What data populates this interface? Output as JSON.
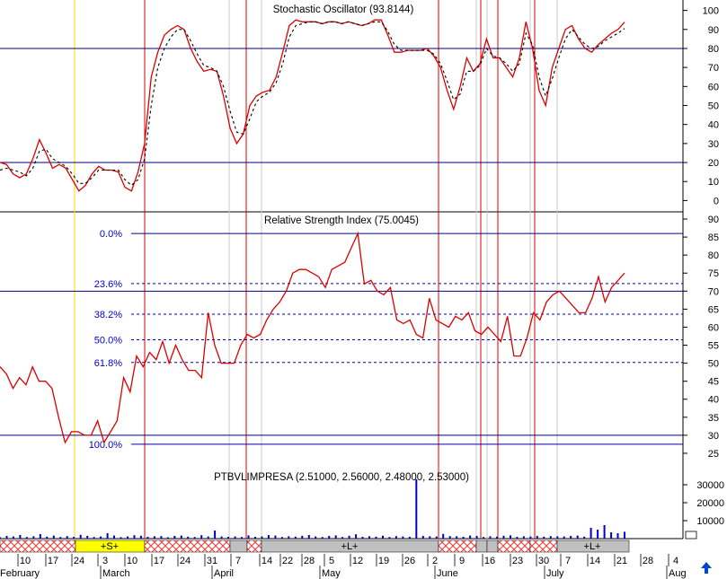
{
  "chart_data": [
    {
      "type": "line",
      "title": "Stochastic Oscillator (93.8144)",
      "ylim": [
        -5,
        105
      ],
      "yticks": [
        0,
        10,
        20,
        30,
        40,
        50,
        60,
        70,
        80,
        90,
        100
      ],
      "reference_lines": [
        80,
        20
      ],
      "series": [
        {
          "values": [
            20,
            19,
            14,
            12,
            14,
            22,
            32,
            25,
            17,
            19,
            17,
            11,
            5,
            8,
            14,
            18,
            16,
            16,
            15,
            7,
            5,
            15,
            30,
            65,
            78,
            87,
            90,
            92,
            90,
            80,
            73,
            68,
            69,
            68,
            55,
            38,
            30,
            35,
            50,
            55,
            57,
            58,
            65,
            78,
            92,
            95,
            94,
            94,
            94,
            93,
            94,
            94,
            93,
            94,
            93,
            92,
            93,
            95,
            95,
            87,
            78,
            78,
            79,
            79,
            79,
            80,
            76,
            70,
            58,
            48,
            60,
            75,
            68,
            72,
            85,
            75,
            75,
            70,
            65,
            75,
            94,
            80,
            58,
            50,
            70,
            80,
            90,
            92,
            85,
            80,
            78,
            82,
            85,
            88,
            90,
            93.8
          ]
        },
        {
          "values": [
            16,
            17,
            16,
            15,
            13,
            17,
            26,
            27,
            22,
            20,
            18,
            14,
            9,
            9,
            12,
            16,
            16,
            16,
            16,
            11,
            8,
            11,
            22,
            50,
            70,
            80,
            86,
            90,
            90,
            84,
            77,
            71,
            70,
            68,
            60,
            47,
            36,
            35,
            43,
            52,
            55,
            57,
            62,
            72,
            86,
            92,
            93,
            94,
            94,
            93,
            94,
            94,
            93,
            94,
            93,
            92,
            93,
            94,
            94,
            89,
            82,
            79,
            79,
            79,
            79,
            79,
            77,
            72,
            63,
            53,
            56,
            68,
            68,
            71,
            80,
            76,
            75,
            72,
            68,
            72,
            88,
            82,
            65,
            55,
            64,
            75,
            85,
            90,
            86,
            82,
            80,
            81,
            84,
            86,
            88,
            90.5
          ]
        }
      ]
    },
    {
      "type": "line",
      "title": "Relative Strength Index (75.0045)",
      "ylim": [
        22,
        92
      ],
      "yticks": [
        25,
        30,
        35,
        40,
        45,
        50,
        55,
        60,
        65,
        70,
        75,
        80,
        85,
        90
      ],
      "reference_lines": [
        70,
        30
      ],
      "fibonacci_levels": [
        {
          "label": "0.0%",
          "value": 86
        },
        {
          "label": "23.6%",
          "value": 72.1
        },
        {
          "label": "38.2%",
          "value": 63.6
        },
        {
          "label": "50.0%",
          "value": 56.5
        },
        {
          "label": "61.8%",
          "value": 50.2
        },
        {
          "label": "100.0%",
          "value": 27.5
        }
      ],
      "series": [
        {
          "values": [
            49,
            47,
            43,
            46,
            44,
            49,
            45,
            45,
            43,
            35,
            28,
            31,
            31,
            30,
            30,
            34,
            28,
            31,
            34,
            46,
            42,
            52,
            49,
            53,
            51,
            56,
            50,
            55,
            51,
            48,
            48,
            46,
            64,
            55,
            50,
            50,
            50,
            55,
            58,
            57,
            58,
            62,
            65,
            67,
            70,
            75,
            76,
            76,
            75,
            74,
            71,
            76,
            77,
            78,
            82,
            86,
            72,
            73,
            70,
            69,
            71,
            62,
            61,
            62,
            58,
            57,
            68,
            62,
            61,
            60,
            63,
            62,
            64,
            59,
            58,
            60,
            58,
            56,
            63,
            52,
            52,
            57,
            64,
            62,
            67,
            69,
            70,
            68,
            66,
            64,
            64,
            68,
            74,
            67,
            71,
            73,
            75
          ]
        }
      ]
    },
    {
      "type": "bar",
      "title": "PTBVLIMPRESA (2.51000, 2.56000, 2.48000, 2.53000)",
      "ylim": [
        0,
        40000
      ],
      "yticks": [
        10000,
        20000,
        30000
      ],
      "values": [
        800,
        1500,
        1200,
        2000,
        900,
        1300,
        2500,
        1100,
        1700,
        900,
        1400,
        1000,
        2100,
        1500,
        900,
        1200,
        3000,
        1700,
        800,
        1200,
        1900,
        1600,
        1000,
        1300,
        1400,
        800,
        1500,
        1700,
        1100,
        900,
        1900,
        1200,
        4500,
        1200,
        1000,
        1200,
        900,
        1800,
        1000,
        1200,
        2000,
        1700,
        900,
        1300,
        1100,
        1600,
        2000,
        1200,
        900,
        1500,
        1800,
        900,
        1600,
        2400,
        1000,
        1300,
        1100,
        1600,
        900,
        1400,
        1200,
        1000,
        33000,
        1500,
        1300,
        1200,
        2600,
        1400,
        1300,
        1000,
        1700,
        1500,
        900,
        1300,
        1100,
        1600,
        1800,
        1000,
        1300,
        1200,
        1500,
        1100,
        1400,
        1300,
        1200,
        1500,
        1700,
        1100,
        6000,
        5000,
        7500,
        3500,
        3000,
        3800
      ]
    }
  ],
  "x_axis": {
    "day_labels": [
      "10",
      "17",
      "24",
      "3",
      "10",
      "17",
      "24",
      "31",
      "7",
      "14",
      "22",
      "28",
      "5",
      "12",
      "19",
      "26",
      "2",
      "9",
      "16",
      "23",
      "30",
      "7",
      "14",
      "21",
      "28",
      "4"
    ],
    "month_labels": [
      "February",
      "March",
      "April",
      "May",
      "June",
      "July",
      "Aug"
    ]
  },
  "signal_bar": {
    "sell_label": "+S+",
    "long_labels": [
      "+L+",
      "+L+"
    ]
  },
  "colors": {
    "stochastic_k": "#dd0000",
    "stochastic_d": "#000000",
    "rsi": "#dd0000",
    "fibonacci": "#0000aa",
    "volume": "#0000cc",
    "signal_line": "#dd0000",
    "sell_zone": "#ffff00",
    "long_zone": "#c0c0c0",
    "hatch": "#ff0000"
  },
  "icons": {
    "scroll": "up-arrow-icon"
  }
}
